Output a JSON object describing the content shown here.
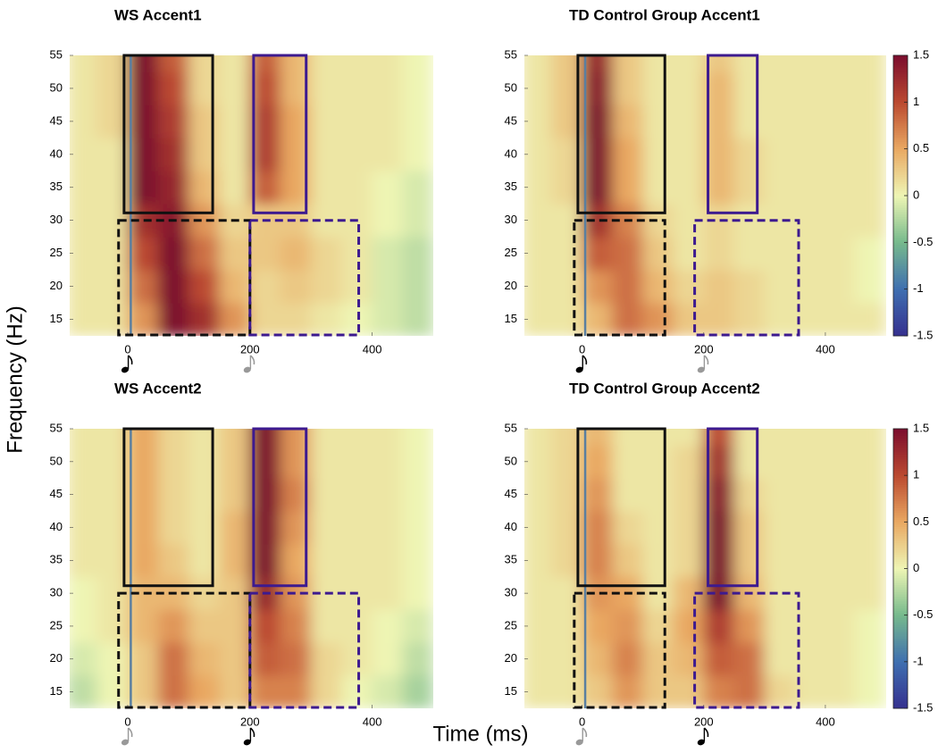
{
  "figure": {
    "xlabel": "Time (ms)",
    "ylabel": "Frequency (Hz)"
  },
  "chart_data": [
    {
      "type": "heatmap",
      "title": "WS Accent1",
      "x": [
        -75,
        -25,
        25,
        75,
        125,
        175,
        225,
        275,
        325,
        375,
        425,
        475
      ],
      "y": [
        15,
        20,
        25,
        30,
        35,
        40,
        45,
        50,
        55
      ],
      "values": [
        [
          0.1,
          0.1,
          0.6,
          1.5,
          1.2,
          0.6,
          0.2,
          0.2,
          0.1,
          0,
          -0.1,
          -0.2
        ],
        [
          0.1,
          0.1,
          0.8,
          1.5,
          1.0,
          0.4,
          0.2,
          0.3,
          0.2,
          0.1,
          -0.1,
          -0.2
        ],
        [
          0.1,
          0.1,
          1.0,
          1.5,
          0.8,
          0.3,
          0.3,
          0.4,
          0.2,
          0.1,
          -0.1,
          -0.2
        ],
        [
          0.1,
          0.1,
          1.2,
          1.4,
          0.6,
          0.2,
          0.3,
          0.3,
          0.1,
          0.1,
          0,
          -0.1
        ],
        [
          0.1,
          0.1,
          1.5,
          1.3,
          0.4,
          0.1,
          0.9,
          0.5,
          0.1,
          0.1,
          0,
          -0.1
        ],
        [
          0.1,
          0.1,
          1.5,
          1.2,
          0.3,
          0.1,
          1.1,
          0.5,
          0.1,
          0.1,
          0.1,
          0
        ],
        [
          0.1,
          0.2,
          1.5,
          1.1,
          0.3,
          0.1,
          1.1,
          0.5,
          0.1,
          0.1,
          0.1,
          0
        ],
        [
          0.1,
          0.2,
          1.5,
          1.0,
          0.2,
          0.1,
          1.0,
          0.4,
          0.1,
          0.1,
          0.1,
          0
        ],
        [
          0.1,
          0.2,
          1.5,
          0.9,
          0.2,
          0.1,
          0.9,
          0.4,
          0.1,
          0.1,
          0.1,
          0
        ]
      ],
      "xlim": [
        -95,
        500
      ],
      "ylim": [
        12.5,
        55
      ],
      "xticks": [
        0,
        200,
        400
      ],
      "yticks": [
        15,
        20,
        25,
        30,
        35,
        40,
        45,
        50,
        55
      ],
      "clim": [
        -1.5,
        1.5
      ],
      "colorbar": false,
      "colormap": [
        "#35308f",
        "#3f6fb0",
        "#76b98c",
        "#eef5b4",
        "#e9a862",
        "#bb4a30",
        "#7b0d2e"
      ],
      "marker_line": {
        "x": 5,
        "color": "#5a7fa0"
      },
      "windows": [
        {
          "xlim": [
            -6,
            139
          ],
          "ylim": [
            31,
            55
          ],
          "color": "#111111",
          "dashed": false
        },
        {
          "xlim": [
            -15,
            200
          ],
          "ylim": [
            12.5,
            30
          ],
          "color": "#111111",
          "dashed": true
        },
        {
          "xlim": [
            206,
            292
          ],
          "ylim": [
            31,
            55
          ],
          "color": "#3d1a8f",
          "dashed": false
        },
        {
          "xlim": [
            200,
            378
          ],
          "ylim": [
            12.5,
            30
          ],
          "color": "#3d1a8f",
          "dashed": true
        }
      ],
      "notes": [
        {
          "x": 0,
          "color": "#000000"
        },
        {
          "x": 200,
          "color": "#999999"
        }
      ]
    },
    {
      "type": "heatmap",
      "title": "TD Control Group Accent1",
      "x": [
        -75,
        -25,
        25,
        75,
        125,
        175,
        225,
        275,
        325,
        375,
        425,
        475
      ],
      "y": [
        15,
        20,
        25,
        30,
        35,
        40,
        45,
        50,
        55
      ],
      "values": [
        [
          0.1,
          0.1,
          0.4,
          0.8,
          0.6,
          0.3,
          0.3,
          0.2,
          0.1,
          0.1,
          0.1,
          0.1
        ],
        [
          0.1,
          0.1,
          0.6,
          0.8,
          0.4,
          0.2,
          0.3,
          0.2,
          0.1,
          0.1,
          0.1,
          0
        ],
        [
          0.1,
          0.1,
          0.9,
          0.8,
          0.3,
          0.1,
          0.2,
          0.1,
          0.1,
          0.1,
          0.1,
          0
        ],
        [
          0.1,
          0.1,
          1.2,
          0.7,
          0.2,
          0.1,
          0.2,
          0.1,
          0.1,
          0.1,
          0.1,
          0.1
        ],
        [
          0.1,
          0.2,
          1.5,
          0.5,
          0.1,
          0.1,
          0.4,
          0.2,
          0.1,
          0.1,
          0.1,
          0.1
        ],
        [
          0.1,
          0.2,
          1.5,
          0.5,
          0.1,
          0.1,
          0.4,
          0.2,
          0.1,
          0.1,
          0.1,
          0.1
        ],
        [
          0.1,
          0.3,
          1.5,
          0.4,
          0.1,
          0.1,
          0.4,
          0.1,
          0.1,
          0.1,
          0.1,
          0.1
        ],
        [
          0.1,
          0.3,
          1.4,
          0.3,
          0.1,
          0.1,
          0.4,
          0.1,
          0.1,
          0.1,
          0.1,
          0.1
        ],
        [
          0.1,
          0.3,
          1.3,
          0.3,
          0.1,
          0.1,
          0.3,
          0.1,
          0.1,
          0.1,
          0.1,
          0.1
        ]
      ],
      "xlim": [
        -95,
        500
      ],
      "ylim": [
        12.5,
        55
      ],
      "xticks": [
        0,
        200,
        400
      ],
      "yticks": [
        15,
        20,
        25,
        30,
        35,
        40,
        45,
        50,
        55
      ],
      "clim": [
        -1.5,
        1.5
      ],
      "colorbar": true,
      "cticks": [
        -1.5,
        -1,
        -0.5,
        0,
        0.5,
        1,
        1.5
      ],
      "colormap": [
        "#35308f",
        "#3f6fb0",
        "#76b98c",
        "#eef5b4",
        "#e9a862",
        "#bb4a30",
        "#7b0d2e"
      ],
      "marker_line": {
        "x": 5,
        "color": "#5a7fa0"
      },
      "windows": [
        {
          "xlim": [
            -7,
            136
          ],
          "ylim": [
            31,
            55
          ],
          "color": "#111111",
          "dashed": false
        },
        {
          "xlim": [
            -13,
            136
          ],
          "ylim": [
            12.5,
            30
          ],
          "color": "#111111",
          "dashed": true
        },
        {
          "xlim": [
            207,
            288
          ],
          "ylim": [
            31,
            55
          ],
          "color": "#3d1a8f",
          "dashed": false
        },
        {
          "xlim": [
            185,
            356
          ],
          "ylim": [
            12.5,
            30
          ],
          "color": "#3d1a8f",
          "dashed": true
        }
      ],
      "notes": [
        {
          "x": 0,
          "color": "#000000"
        },
        {
          "x": 200,
          "color": "#999999"
        }
      ]
    },
    {
      "type": "heatmap",
      "title": "WS Accent2",
      "x": [
        -75,
        -25,
        25,
        75,
        125,
        175,
        225,
        275,
        325,
        375,
        425,
        475
      ],
      "y": [
        15,
        20,
        25,
        30,
        35,
        40,
        45,
        50,
        55
      ],
      "values": [
        [
          -0.2,
          0,
          0.3,
          0.8,
          0.5,
          0.3,
          0.7,
          0.7,
          0.2,
          0,
          -0.1,
          -0.3
        ],
        [
          -0.1,
          0,
          0.3,
          0.8,
          0.4,
          0.3,
          0.9,
          0.8,
          0.2,
          0.1,
          0,
          -0.2
        ],
        [
          0,
          0.1,
          0.4,
          0.6,
          0.3,
          0.3,
          1.0,
          0.7,
          0.1,
          0.1,
          0,
          -0.1
        ],
        [
          0,
          0.1,
          0.4,
          0.4,
          0.2,
          0.3,
          1.3,
          0.6,
          0.1,
          0.1,
          0.1,
          0
        ],
        [
          0.1,
          0.1,
          0.5,
          0.3,
          0.1,
          0.4,
          1.5,
          0.5,
          0.1,
          0.1,
          0.1,
          0
        ],
        [
          0.1,
          0.1,
          0.5,
          0.2,
          0.1,
          0.4,
          1.5,
          0.6,
          0.1,
          0.1,
          0.1,
          0
        ],
        [
          0.1,
          0.1,
          0.5,
          0.2,
          0.1,
          0.3,
          1.5,
          0.7,
          0.1,
          0.1,
          0.1,
          0
        ],
        [
          0.1,
          0.1,
          0.5,
          0.2,
          0.1,
          0.3,
          1.5,
          0.6,
          0.1,
          0.1,
          0.1,
          0
        ],
        [
          0.1,
          0.1,
          0.5,
          0.2,
          0.1,
          0.3,
          1.5,
          0.6,
          0.1,
          0.1,
          0.1,
          0
        ]
      ],
      "xlim": [
        -95,
        500
      ],
      "ylim": [
        12.5,
        55
      ],
      "xticks": [
        0,
        200,
        400
      ],
      "yticks": [
        15,
        20,
        25,
        30,
        35,
        40,
        45,
        50,
        55
      ],
      "clim": [
        -1.5,
        1.5
      ],
      "colorbar": false,
      "colormap": [
        "#35308f",
        "#3f6fb0",
        "#76b98c",
        "#eef5b4",
        "#e9a862",
        "#bb4a30",
        "#7b0d2e"
      ],
      "marker_line": {
        "x": 5,
        "color": "#5a7fa0"
      },
      "windows": [
        {
          "xlim": [
            -6,
            139
          ],
          "ylim": [
            31,
            55
          ],
          "color": "#111111",
          "dashed": false
        },
        {
          "xlim": [
            -15,
            200
          ],
          "ylim": [
            12.5,
            30
          ],
          "color": "#111111",
          "dashed": true
        },
        {
          "xlim": [
            206,
            292
          ],
          "ylim": [
            31,
            55
          ],
          "color": "#3d1a8f",
          "dashed": false
        },
        {
          "xlim": [
            200,
            378
          ],
          "ylim": [
            12.5,
            30
          ],
          "color": "#3d1a8f",
          "dashed": true
        }
      ],
      "notes": [
        {
          "x": 0,
          "color": "#999999"
        },
        {
          "x": 200,
          "color": "#000000"
        }
      ]
    },
    {
      "type": "heatmap",
      "title": "TD Control Group Accent2",
      "x": [
        -75,
        -25,
        25,
        75,
        125,
        175,
        225,
        275,
        325,
        375,
        425,
        475
      ],
      "y": [
        15,
        20,
        25,
        30,
        35,
        40,
        45,
        50,
        55
      ],
      "values": [
        [
          0.1,
          0.1,
          0.3,
          0.6,
          0.3,
          0.3,
          0.7,
          0.8,
          0.2,
          0.1,
          0.1,
          0
        ],
        [
          0.1,
          0.1,
          0.4,
          0.7,
          0.3,
          0.4,
          0.9,
          0.8,
          0.1,
          0.1,
          0.1,
          0
        ],
        [
          0.1,
          0.1,
          0.5,
          0.6,
          0.2,
          0.5,
          1.1,
          0.6,
          0.1,
          0.1,
          0.1,
          0
        ],
        [
          0.1,
          0.1,
          0.6,
          0.5,
          0.1,
          0.4,
          1.5,
          0.4,
          0.1,
          0.1,
          0.1,
          0.1
        ],
        [
          0.1,
          0.2,
          0.7,
          0.3,
          0.1,
          0.2,
          1.5,
          0.3,
          0.1,
          0.1,
          0.1,
          0.1
        ],
        [
          0.1,
          0.2,
          0.7,
          0.2,
          0.1,
          0.2,
          1.5,
          0.3,
          0.1,
          0.1,
          0.1,
          0.1
        ],
        [
          0.1,
          0.2,
          0.6,
          0.1,
          0.1,
          0.2,
          1.4,
          0.2,
          0.1,
          0.1,
          0.1,
          0.1
        ],
        [
          0.1,
          0.2,
          0.5,
          0.1,
          0.1,
          0.2,
          1.2,
          0.1,
          0.1,
          0.1,
          0.1,
          0.1
        ],
        [
          0.1,
          0.2,
          0.4,
          0.1,
          0.1,
          0.1,
          1.0,
          0.1,
          0.1,
          0.1,
          0.1,
          0.1
        ]
      ],
      "xlim": [
        -95,
        500
      ],
      "ylim": [
        12.5,
        55
      ],
      "xticks": [
        0,
        200,
        400
      ],
      "yticks": [
        15,
        20,
        25,
        30,
        35,
        40,
        45,
        50,
        55
      ],
      "clim": [
        -1.5,
        1.5
      ],
      "colorbar": true,
      "cticks": [
        -1.5,
        -1,
        -0.5,
        0,
        0.5,
        1,
        1.5
      ],
      "colormap": [
        "#35308f",
        "#3f6fb0",
        "#76b98c",
        "#eef5b4",
        "#e9a862",
        "#bb4a30",
        "#7b0d2e"
      ],
      "marker_line": {
        "x": 5,
        "color": "#5a7fa0"
      },
      "windows": [
        {
          "xlim": [
            -7,
            136
          ],
          "ylim": [
            31,
            55
          ],
          "color": "#111111",
          "dashed": false
        },
        {
          "xlim": [
            -13,
            136
          ],
          "ylim": [
            12.5,
            30
          ],
          "color": "#111111",
          "dashed": true
        },
        {
          "xlim": [
            207,
            288
          ],
          "ylim": [
            31,
            55
          ],
          "color": "#3d1a8f",
          "dashed": false
        },
        {
          "xlim": [
            185,
            356
          ],
          "ylim": [
            12.5,
            30
          ],
          "color": "#3d1a8f",
          "dashed": true
        }
      ],
      "notes": [
        {
          "x": 0,
          "color": "#999999"
        },
        {
          "x": 200,
          "color": "#000000"
        }
      ]
    }
  ]
}
